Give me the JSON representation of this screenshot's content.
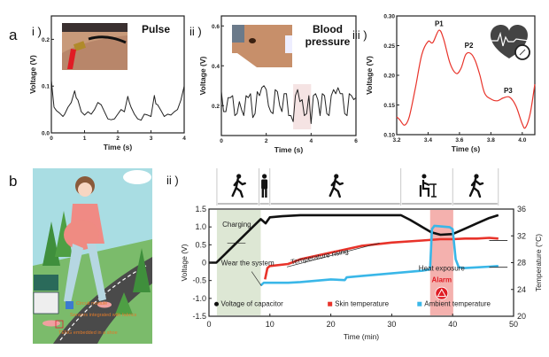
{
  "figure": {
    "panel_a_label": "a",
    "panel_b_label": "b",
    "sub_labels": {
      "ai": "i )",
      "aii": "ii )",
      "aiii": "iii )",
      "bi": "i )",
      "bii": "ii )"
    }
  },
  "illustration": {
    "labels": [
      "Circuit module",
      "Sensors integrated with fabrics",
      "TENG embedded in a shoe"
    ]
  },
  "chart_data": [
    {
      "type": "line",
      "id": "pulse",
      "title": "Pulse",
      "xlabel": "Time (s)",
      "ylabel": "Voltage (V)",
      "xlim": [
        0,
        4
      ],
      "ylim": [
        0,
        0.25
      ],
      "xticks": [
        "0",
        "1",
        "2",
        "3",
        "4"
      ],
      "yticks": [
        "0.0",
        "0.1",
        "0.2"
      ],
      "color": "#222222",
      "x": [
        0,
        0.08,
        0.15,
        0.25,
        0.35,
        0.4,
        0.5,
        0.6,
        0.7,
        0.75,
        0.8,
        0.9,
        1.0,
        1.1,
        1.2,
        1.3,
        1.4,
        1.5,
        1.6,
        1.7,
        1.8,
        1.9,
        2.0,
        2.1,
        2.2,
        2.3,
        2.35,
        2.4,
        2.5,
        2.6,
        2.7,
        2.8,
        2.9,
        3.0,
        3.1,
        3.15,
        3.2,
        3.3,
        3.4,
        3.5,
        3.6,
        3.7,
        3.8,
        3.9,
        4.0
      ],
      "y": [
        0.112,
        0.055,
        0.048,
        0.042,
        0.035,
        0.04,
        0.055,
        0.065,
        0.09,
        0.075,
        0.07,
        0.045,
        0.038,
        0.045,
        0.04,
        0.05,
        0.065,
        0.06,
        0.045,
        0.03,
        0.028,
        0.03,
        0.04,
        0.05,
        0.045,
        0.078,
        0.065,
        0.055,
        0.04,
        0.03,
        0.027,
        0.04,
        0.038,
        0.035,
        0.08,
        0.062,
        0.06,
        0.048,
        0.035,
        0.04,
        0.038,
        0.045,
        0.05,
        0.07,
        0.1
      ]
    },
    {
      "type": "line",
      "id": "blood_pressure",
      "title": "Blood pressure",
      "xlabel": "Time (s)",
      "ylabel": "Voltage (V)",
      "xlim": [
        0,
        6
      ],
      "ylim": [
        0.05,
        0.65
      ],
      "xticks": [
        "0",
        "2",
        "4",
        "6"
      ],
      "yticks": [
        "0.2",
        "0.4",
        "0.6"
      ],
      "highlight_x": [
        3.2,
        4.0
      ],
      "color": "#222222",
      "x": [
        0,
        0.1,
        0.2,
        0.3,
        0.4,
        0.5,
        0.6,
        0.7,
        0.8,
        0.9,
        1.0,
        1.1,
        1.2,
        1.3,
        1.4,
        1.5,
        1.6,
        1.7,
        1.8,
        1.9,
        2.0,
        2.1,
        2.2,
        2.3,
        2.4,
        2.5,
        2.6,
        2.7,
        2.8,
        2.9,
        3.0,
        3.1,
        3.2,
        3.3,
        3.4,
        3.5,
        3.6,
        3.7,
        3.8,
        3.9,
        4.0,
        4.1,
        4.2,
        4.3,
        4.4,
        4.5,
        4.6,
        4.7,
        4.8,
        4.9,
        5.0,
        5.1,
        5.2,
        5.3,
        5.4,
        5.5,
        5.6,
        5.7,
        5.8,
        5.9,
        6.0
      ],
      "y": [
        0.27,
        0.17,
        0.17,
        0.24,
        0.24,
        0.25,
        0.15,
        0.16,
        0.22,
        0.18,
        0.15,
        0.25,
        0.24,
        0.26,
        0.14,
        0.16,
        0.27,
        0.25,
        0.29,
        0.3,
        0.28,
        0.2,
        0.17,
        0.16,
        0.28,
        0.27,
        0.2,
        0.17,
        0.26,
        0.26,
        0.15,
        0.15,
        0.12,
        0.25,
        0.28,
        0.22,
        0.23,
        0.15,
        0.16,
        0.25,
        0.11,
        0.25,
        0.26,
        0.23,
        0.15,
        0.26,
        0.25,
        0.16,
        0.15,
        0.25,
        0.28,
        0.26,
        0.29,
        0.26,
        0.26,
        0.16,
        0.15,
        0.26,
        0.25,
        0.23,
        0.24
      ]
    },
    {
      "type": "line",
      "id": "pulse_wave_detail",
      "xlabel": "Time (s)",
      "ylabel": "Voltage (V)",
      "xlim": [
        3.2,
        4.08
      ],
      "ylim": [
        0.1,
        0.3
      ],
      "xticks": [
        "3.2",
        "3.4",
        "3.6",
        "3.8",
        "4.0"
      ],
      "yticks": [
        "0.10",
        "0.15",
        "0.20",
        "0.25",
        "0.30"
      ],
      "color": "#e8332a",
      "annotations": [
        {
          "text": "P1",
          "x": 3.47,
          "y": 0.283
        },
        {
          "text": "P2",
          "x": 3.66,
          "y": 0.246
        },
        {
          "text": "P3",
          "x": 3.91,
          "y": 0.17
        }
      ],
      "x": [
        3.2,
        3.22,
        3.25,
        3.28,
        3.32,
        3.36,
        3.4,
        3.43,
        3.47,
        3.5,
        3.54,
        3.58,
        3.61,
        3.64,
        3.67,
        3.7,
        3.73,
        3.76,
        3.8,
        3.84,
        3.88,
        3.92,
        3.96,
        4.0,
        4.02,
        4.05,
        4.08
      ],
      "y": [
        0.13,
        0.125,
        0.116,
        0.13,
        0.18,
        0.235,
        0.257,
        0.255,
        0.276,
        0.26,
        0.22,
        0.203,
        0.212,
        0.235,
        0.237,
        0.225,
        0.2,
        0.17,
        0.16,
        0.157,
        0.162,
        0.163,
        0.148,
        0.118,
        0.112,
        0.135,
        0.185
      ]
    },
    {
      "type": "line",
      "id": "system_monitoring",
      "xlabel": "Time (min)",
      "ylabel": "Voltage (V)",
      "ylabel_right": "Temperature (°C)",
      "xlim": [
        0,
        50
      ],
      "ylim": [
        -1.5,
        1.5
      ],
      "ylim_right": [
        20,
        36
      ],
      "xticks": [
        "0",
        "10",
        "20",
        "30",
        "40",
        "50"
      ],
      "yticks": [
        "-1.5",
        "-1.0",
        "-0.5",
        "0",
        "0.5",
        "1.0",
        "1.5"
      ],
      "yticks_right": [
        "20",
        "24",
        "28",
        "32",
        "36"
      ],
      "regions": [
        {
          "name": "Charging",
          "x": [
            1.3,
            8.5
          ]
        },
        {
          "name": "Heat exposure",
          "x": [
            36.3,
            40.1
          ]
        }
      ],
      "activities": [
        {
          "icon": "walking-icon",
          "x": [
            1.3,
            8.2
          ]
        },
        {
          "icon": "standing-icon",
          "x": [
            8.2,
            10
          ]
        },
        {
          "icon": "walking-icon",
          "x": [
            10,
            31.5
          ]
        },
        {
          "icon": "sitting-icon",
          "x": [
            31.5,
            40
          ]
        },
        {
          "icon": "walking-icon",
          "x": [
            40,
            47.5
          ]
        }
      ],
      "annotations": [
        "Charging",
        "Wear the system",
        "Temperature rising",
        "Heat exposure",
        "Alarm"
      ],
      "legend": [
        "Voltage of capacitor",
        "Skin temperature",
        "Ambient temperature"
      ],
      "legend_position": "bottom",
      "series": [
        {
          "name": "Voltage of capacitor",
          "axis": "left",
          "color": "#111111",
          "x": [
            0,
            1.2,
            8.5,
            9.3,
            10,
            12,
            15,
            20,
            25,
            31.5,
            33,
            35,
            36.5,
            38,
            40,
            42,
            44,
            46,
            47.5
          ],
          "y": [
            0,
            0,
            1.22,
            1.1,
            1.27,
            1.3,
            1.33,
            1.33,
            1.33,
            1.33,
            1.2,
            1.0,
            0.85,
            0.78,
            0.8,
            0.95,
            1.1,
            1.25,
            1.33
          ]
        },
        {
          "name": "Skin temperature",
          "axis": "right",
          "color": "#e8332a",
          "x": [
            9.2,
            9.6,
            10,
            13,
            15,
            20,
            25,
            30,
            35,
            38,
            40,
            42,
            44,
            46,
            47.5
          ],
          "y": [
            25.5,
            27.2,
            27.5,
            27.8,
            28.5,
            29.5,
            30.5,
            31,
            31.3,
            31.5,
            31.5,
            31.6,
            31.6,
            31.7,
            31.6
          ]
        },
        {
          "name": "Ambient temperature",
          "axis": "right",
          "color": "#3ab7e8",
          "x": [
            8.5,
            9,
            10,
            13,
            15,
            20,
            22.3,
            22.6,
            25,
            30,
            35,
            36.3,
            36.6,
            37,
            39.5,
            40,
            40.5,
            41,
            42,
            44,
            46,
            47.5
          ],
          "y": [
            24.6,
            25,
            25,
            25,
            25.1,
            25.5,
            25.4,
            25.8,
            26,
            26.4,
            26.8,
            27,
            33,
            33.5,
            33.3,
            33,
            28.5,
            27.3,
            27.2,
            27.3,
            27.4,
            27.5
          ]
        }
      ]
    }
  ]
}
